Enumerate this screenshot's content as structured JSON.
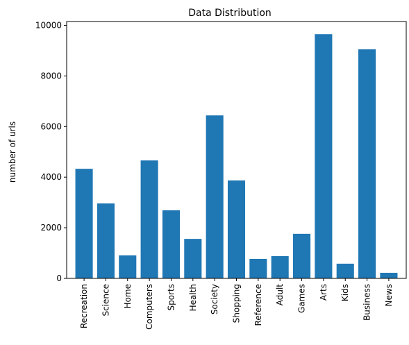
{
  "chart_data": {
    "type": "bar",
    "title": "Data Distribution",
    "xlabel": "",
    "ylabel": "number of urls",
    "categories": [
      "Recreation",
      "Science",
      "Home",
      "Computers",
      "Sports",
      "Health",
      "Society",
      "Shopping",
      "Reference",
      "Adult",
      "Games",
      "Arts",
      "Kids",
      "Business",
      "News"
    ],
    "values": [
      4330,
      2960,
      910,
      4660,
      2690,
      1560,
      6440,
      3870,
      770,
      880,
      1760,
      9650,
      580,
      9050,
      220
    ],
    "ylim": [
      0,
      10150
    ],
    "yticks": [
      0,
      2000,
      4000,
      6000,
      8000,
      10000
    ],
    "bar_color": "#1f77b4",
    "grid": false,
    "legend": "none"
  }
}
